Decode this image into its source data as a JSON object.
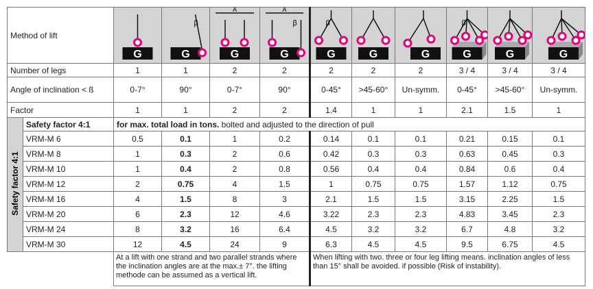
{
  "header": {
    "method_label": "Method of lift",
    "icons": [
      {
        "letter": "G"
      },
      {
        "letter": "G",
        "angle": "β"
      },
      {
        "letter": "G",
        "span": "A"
      },
      {
        "letter": "G",
        "span": "A",
        "angle": "β"
      },
      {
        "letter": "G",
        "angle": "β"
      },
      {
        "letter": "G"
      },
      {
        "letter": "G"
      },
      {
        "letter": "G",
        "angle": "β"
      },
      {
        "letter": "G"
      },
      {
        "letter": "G"
      }
    ]
  },
  "rows": [
    {
      "label": "Number of legs",
      "cells": [
        1,
        1,
        2,
        2,
        2,
        2,
        2,
        "3 / 4",
        "3 / 4",
        "3 / 4"
      ]
    },
    {
      "label": "Angle of inclination < ß",
      "cells": [
        "0-7°",
        "90°",
        "0-7°",
        "90°",
        "0-45°",
        ">45-60°",
        "Un-symm.",
        "0-45°",
        ">45-60°",
        "Un-symm."
      ]
    },
    {
      "label": "Factor",
      "cells": [
        1,
        1,
        2,
        2,
        1.4,
        1,
        1,
        2.1,
        1.5,
        1
      ]
    }
  ],
  "safety": {
    "side_label": "Safety factor 4:1",
    "title": "Safety factor 4:1",
    "note_bold": "for max. total load in tons.",
    "note": " bolted and adjusted to the direction of pull",
    "rows": [
      {
        "label": "VRM-M 6",
        "cells": [
          0.5,
          0.1,
          1,
          0.2,
          0.14,
          0.1,
          0.1,
          0.21,
          0.15,
          0.1
        ]
      },
      {
        "label": "VRM-M 8",
        "cells": [
          1,
          0.3,
          2,
          0.6,
          0.42,
          0.3,
          0.3,
          0.63,
          0.45,
          0.3
        ]
      },
      {
        "label": "VRM-M 10",
        "cells": [
          1,
          0.4,
          2,
          0.8,
          0.56,
          0.4,
          0.4,
          0.84,
          0.6,
          0.4
        ]
      },
      {
        "label": "VRM-M 12",
        "cells": [
          2,
          0.75,
          4,
          1.5,
          1,
          0.75,
          0.75,
          1.57,
          1.12,
          0.75
        ]
      },
      {
        "label": "VRM-M 16",
        "cells": [
          4,
          1.5,
          8,
          3,
          2.1,
          1.5,
          1.5,
          3.15,
          2.25,
          1.5
        ]
      },
      {
        "label": "VRM-M 20",
        "cells": [
          6,
          2.3,
          12,
          4.6,
          3.22,
          2.3,
          2.3,
          4.83,
          3.45,
          2.3
        ]
      },
      {
        "label": "VRM-M 24",
        "cells": [
          8,
          3.2,
          16,
          6.4,
          4.5,
          3.2,
          3.2,
          6.7,
          4.8,
          3.2
        ]
      },
      {
        "label": "VRM-M 30",
        "cells": [
          12,
          4.5,
          24,
          9,
          6.3,
          4.5,
          4.5,
          9.5,
          6.75,
          4.5
        ]
      }
    ]
  },
  "notes": [
    "At a lift with one strand and two parallel strands where the inclination angles are at the max.± 7°. the lifting methode can be assumed as a vertical lift.",
    "When lifting with two. three or four leg lifting means. inclination angles of less than 15° shall be avoided. if possible (Risk of instability)."
  ]
}
